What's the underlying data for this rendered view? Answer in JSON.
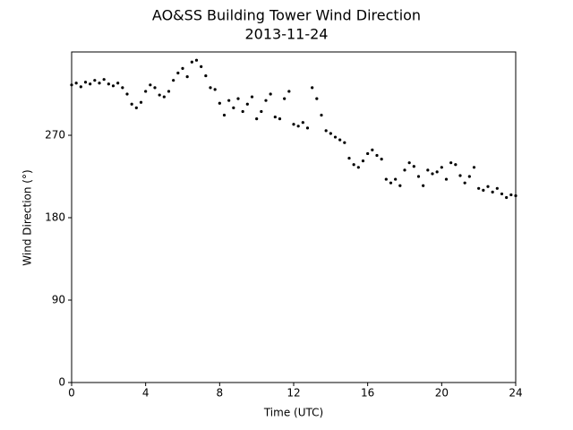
{
  "chart_data": {
    "type": "scatter",
    "title": "AO&SS Building Tower Wind Direction",
    "subtitle": "2013-11-24",
    "x_label": "Time (UTC)",
    "y_label": "Wind Direction (°)",
    "color": "#000000",
    "xlim": [
      0,
      24
    ],
    "ylim": [
      0,
      361
    ],
    "xticks": [
      0,
      4,
      8,
      12,
      16,
      20,
      24
    ],
    "yticks": [
      0,
      90,
      180,
      270
    ],
    "x": [
      0,
      0.25,
      0.5,
      0.75,
      1,
      1.25,
      1.5,
      1.75,
      2,
      2.25,
      2.5,
      2.75,
      3,
      3.25,
      3.5,
      3.75,
      4,
      4.25,
      4.5,
      4.75,
      5,
      5.25,
      5.5,
      5.75,
      6,
      6.25,
      6.5,
      6.75,
      7,
      7.25,
      7.5,
      7.75,
      8,
      8.25,
      8.5,
      8.75,
      9,
      9.25,
      9.5,
      9.75,
      10,
      10.25,
      10.5,
      10.75,
      11,
      11.25,
      11.5,
      11.75,
      12,
      12.25,
      12.5,
      12.75,
      13,
      13.25,
      13.5,
      13.75,
      14,
      14.25,
      14.5,
      14.75,
      15,
      15.25,
      15.5,
      15.75,
      16,
      16.25,
      16.5,
      16.75,
      17,
      17.25,
      17.5,
      17.75,
      18,
      18.25,
      18.5,
      18.75,
      19,
      19.25,
      19.5,
      19.75,
      20,
      20.25,
      20.5,
      20.75,
      21,
      21.25,
      21.5,
      21.75,
      22,
      22.25,
      22.5,
      22.75,
      23,
      23.25,
      23.5,
      23.75,
      24
    ],
    "values": [
      325,
      327,
      323,
      328,
      326,
      330,
      327,
      331,
      326,
      324,
      327,
      322,
      315,
      304,
      300,
      306,
      318,
      325,
      322,
      314,
      312,
      318,
      330,
      338,
      343,
      334,
      350,
      352,
      345,
      335,
      322,
      320,
      305,
      292,
      308,
      300,
      310,
      296,
      304,
      312,
      288,
      296,
      308,
      315,
      290,
      288,
      310,
      318,
      282,
      280,
      284,
      278,
      322,
      310,
      292,
      275,
      272,
      268,
      265,
      262,
      245,
      238,
      235,
      242,
      250,
      254,
      248,
      244,
      222,
      218,
      222,
      215,
      232,
      240,
      236,
      225,
      215,
      232,
      228,
      230,
      235,
      222,
      240,
      238,
      226,
      218,
      225,
      235,
      212,
      210,
      214,
      208,
      212,
      206,
      202,
      205,
      204
    ]
  }
}
